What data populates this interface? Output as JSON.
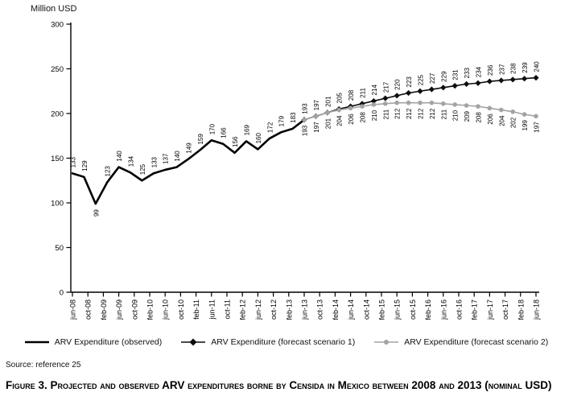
{
  "chart_data": {
    "type": "line",
    "ylabel": "Million USD",
    "ylim": [
      0,
      300
    ],
    "y_ticks": [
      0,
      50,
      100,
      150,
      200,
      250,
      300
    ],
    "x_tick_labels": [
      "jun-08",
      "oct-08",
      "feb-09",
      "jun-09",
      "oct-09",
      "feb-10",
      "jun-10",
      "oct-10",
      "feb-11",
      "jun-11",
      "oct-11",
      "feb-12",
      "jun-12",
      "oct-12",
      "feb-13",
      "jun-13",
      "oct-13",
      "feb-14",
      "jun-14",
      "oct-14",
      "feb-15",
      "jun-15",
      "oct-15",
      "feb-16",
      "jun-16",
      "oct-16",
      "feb-17",
      "jun-17",
      "oct-17",
      "feb-18",
      "jun-18"
    ],
    "x_range": [
      "jun-08",
      "jun-18"
    ],
    "x_interval_months": 3,
    "forecast_start": "jun-13",
    "grid": false,
    "legend_position": "bottom",
    "series": [
      {
        "key": "observed",
        "name": "ARV Expenditure (observed)",
        "color": "#000000",
        "width": 2.6,
        "marker": "none",
        "start_index": 0,
        "labels_below": false,
        "below_label_indices": [
          2
        ],
        "skip_first_label": false,
        "values": [
          133,
          129,
          99,
          123,
          140,
          134,
          125,
          133,
          137,
          140,
          149,
          159,
          170,
          166,
          156,
          169,
          160,
          172,
          179,
          183,
          193
        ]
      },
      {
        "key": "forecast-scenario-1",
        "name": "ARV Expenditure (forecast scenario 1)",
        "color": "#0d0d0d",
        "width": 1.6,
        "marker": "diamond",
        "start_index": 20,
        "labels_below": false,
        "below_label_indices": [],
        "skip_first_label": true,
        "values": [
          193,
          197,
          201,
          205,
          208,
          211,
          214,
          217,
          220,
          223,
          225,
          227,
          229,
          231,
          233,
          234,
          236,
          237,
          238,
          239,
          240
        ]
      },
      {
        "key": "forecast-scenario-2",
        "name": "ARV Expenditure (forecast scenario 2)",
        "color": "#a3a3a3",
        "width": 1.6,
        "marker": "circle",
        "start_index": 20,
        "labels_below": true,
        "below_label_indices": [],
        "skip_first_label": false,
        "values": [
          193,
          197,
          201,
          204,
          206,
          208,
          210,
          211,
          212,
          212,
          212,
          212,
          211,
          210,
          209,
          208,
          206,
          204,
          202,
          199,
          197
        ]
      }
    ]
  },
  "source_text": "Source: reference 25",
  "caption": "Figure 3. Projected and observed ARV expenditures borne by Censida in Mexico between 2008 and 2013 (nominal USD)"
}
